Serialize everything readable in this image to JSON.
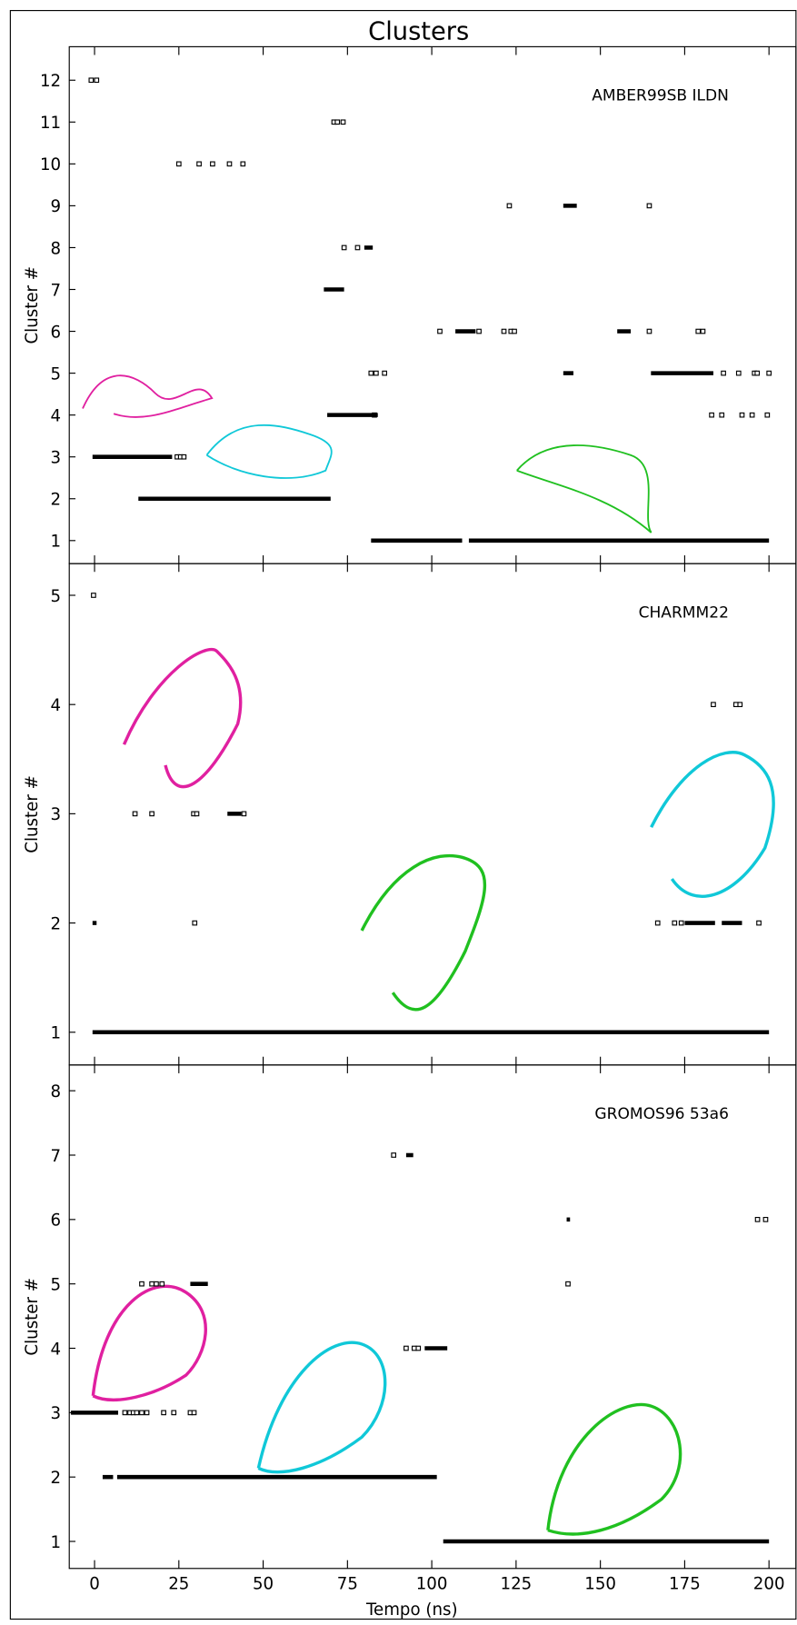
{
  "title": "Clusters",
  "chart_data": [
    {
      "type": "scatter",
      "annotation": "AMBER99SB ILDN",
      "y_label": "Cluster #",
      "xlim": [
        -7.5,
        208
      ],
      "xticks": [
        0,
        25,
        50,
        75,
        100,
        125,
        150,
        175,
        200
      ],
      "ylim": [
        0.45,
        12.8
      ],
      "yticks": [
        1,
        2,
        3,
        4,
        5,
        6,
        7,
        8,
        9,
        10,
        11,
        12
      ],
      "series": [
        {
          "color": "#000000",
          "style": "points",
          "x": [
            -1,
            0.6,
            25,
            31,
            35,
            40,
            44,
            24.5,
            25.5,
            26.5,
            71,
            72,
            73.7,
            74,
            78,
            83,
            82,
            83.5,
            86,
            102.4,
            114,
            121.4,
            123.5,
            124.5,
            164.5,
            179,
            180.4,
            123,
            164.5,
            186.5,
            191,
            195.7,
            196.5,
            200,
            183,
            186,
            192,
            195,
            199.5
          ],
          "values": [
            12,
            12,
            10,
            10,
            10,
            10,
            10,
            3,
            3,
            3,
            11,
            11,
            11,
            8,
            8,
            4,
            5,
            5,
            5,
            6,
            6,
            6,
            6,
            6,
            6,
            6,
            6,
            9,
            9,
            5,
            5,
            5,
            5,
            5,
            4,
            4,
            4,
            4,
            4
          ]
        },
        {
          "color": "#000000",
          "style": "runs",
          "x": [
            -0.6,
            23,
            null,
            13,
            70,
            null,
            82,
            109,
            null,
            111,
            200,
            null,
            69,
            84,
            null,
            68,
            74,
            null,
            80,
            82.5,
            null,
            139,
            142,
            null,
            165,
            183.5,
            null,
            107,
            113,
            null,
            155,
            159,
            null,
            139,
            143
          ],
          "values": [
            3,
            3,
            null,
            2,
            2,
            null,
            1,
            1,
            null,
            1,
            1,
            null,
            4,
            4,
            null,
            7,
            7,
            null,
            8,
            8,
            null,
            5,
            5,
            null,
            5,
            5,
            null,
            6,
            6,
            null,
            6,
            6,
            null,
            9,
            9
          ]
        }
      ]
    },
    {
      "type": "scatter",
      "annotation": "CHARMM22",
      "y_label": "Cluster #",
      "xlim": [
        -7.5,
        208
      ],
      "xticks": [
        0,
        25,
        50,
        75,
        100,
        125,
        150,
        175,
        200
      ],
      "ylim": [
        0.7,
        5.29
      ],
      "yticks": [
        1,
        2,
        3,
        4,
        5
      ],
      "series": [
        {
          "color": "#000000",
          "style": "points",
          "x": [
            -0.3,
            29.7,
            12,
            17,
            29.4,
            30.3,
            44.3,
            183.5,
            190.2,
            191.4,
            167,
            172,
            174,
            197
          ],
          "values": [
            5,
            2,
            3,
            3,
            3,
            3,
            3,
            4,
            4,
            4,
            2,
            2,
            2,
            2
          ]
        },
        {
          "color": "#000000",
          "style": "runs",
          "x": [
            -0.6,
            200,
            null,
            -0.6,
            0.6,
            null,
            175,
            184,
            null,
            186,
            192,
            null,
            39.4,
            43.5
          ],
          "values": [
            1,
            1,
            null,
            2,
            2,
            null,
            2,
            2,
            null,
            2,
            2,
            null,
            3,
            3
          ]
        }
      ]
    },
    {
      "type": "scatter",
      "annotation": "GROMOS96 53a6",
      "y_label": "Cluster #",
      "x_label": "Tempo (ns)",
      "xlim": [
        -7.5,
        208
      ],
      "xticks": [
        0,
        25,
        50,
        75,
        100,
        125,
        150,
        175,
        200
      ],
      "ylim": [
        0.58,
        8.4
      ],
      "yticks": [
        1,
        2,
        3,
        4,
        5,
        6,
        7,
        8
      ],
      "series": [
        {
          "color": "#000000",
          "style": "points",
          "x": [
            9,
            10.5,
            11.5,
            12.5,
            14,
            15.5,
            20.5,
            23.5,
            28.4,
            29.5,
            14,
            17,
            18.3,
            20,
            92.4,
            94.8,
            96,
            88.7,
            196.6,
            199,
            140.4
          ],
          "values": [
            3,
            3,
            3,
            3,
            3,
            3,
            3,
            3,
            3,
            3,
            5,
            5,
            5,
            5,
            4,
            4,
            4,
            7,
            6,
            6,
            5
          ]
        },
        {
          "color": "#000000",
          "style": "runs",
          "x": [
            -7,
            7,
            null,
            2.4,
            5.5,
            null,
            6.7,
            101.5,
            null,
            103.4,
            200,
            null,
            28.4,
            33.6,
            null,
            97.9,
            104.6,
            null,
            92.4,
            94.5,
            null,
            140,
            141
          ],
          "values": [
            3,
            3,
            null,
            2,
            2,
            null,
            2,
            2,
            null,
            1,
            1,
            null,
            5,
            5,
            null,
            4,
            4,
            null,
            7,
            7,
            null,
            6,
            6
          ]
        }
      ]
    }
  ]
}
